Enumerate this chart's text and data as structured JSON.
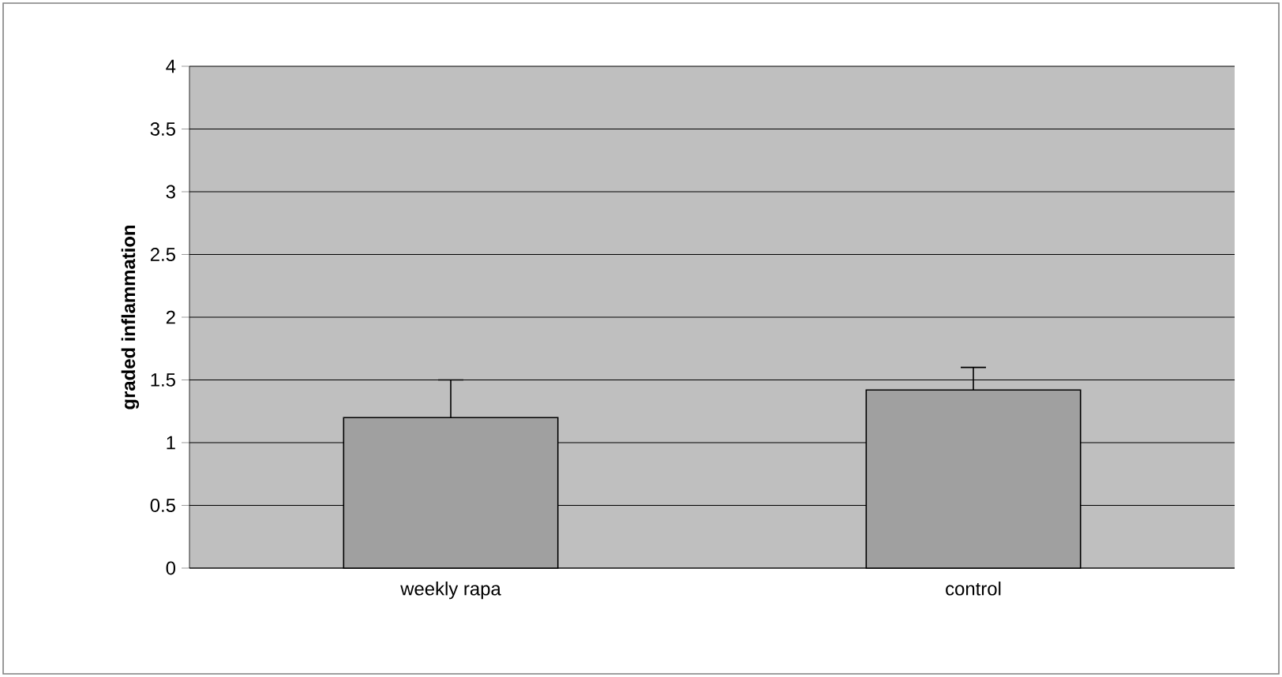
{
  "chart_data": {
    "type": "bar",
    "ylabel": "graded inflammation",
    "categories": [
      "weekly rapa",
      "control"
    ],
    "values": [
      1.2,
      1.42
    ],
    "errors": [
      [
        1.2,
        1.5
      ],
      [
        1.42,
        1.6
      ]
    ],
    "color": "#a0a0a0",
    "ylim": [
      0,
      4
    ],
    "yticks": [
      0,
      0.5,
      1,
      1.5,
      2,
      2.5,
      3,
      3.5,
      4
    ],
    "grid": "y"
  }
}
